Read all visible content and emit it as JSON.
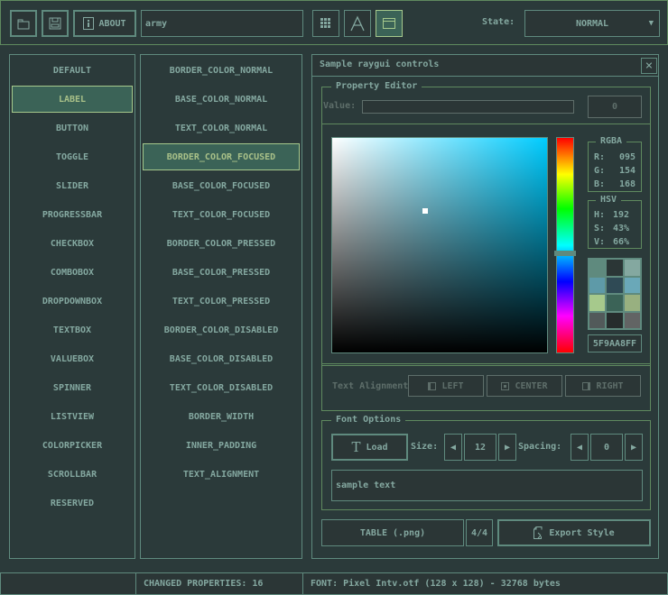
{
  "toolbar": {
    "about_label": "ABOUT",
    "search_value": "army",
    "state_label": "State:",
    "state_value": "NORMAL",
    "icons": [
      "folder-open-icon",
      "save-icon",
      "info-icon",
      "grid-icon",
      "font-icon",
      "window-icon"
    ]
  },
  "controls": [
    "DEFAULT",
    "LABEL",
    "BUTTON",
    "TOGGLE",
    "SLIDER",
    "PROGRESSBAR",
    "CHECKBOX",
    "COMBOBOX",
    "DROPDOWNBOX",
    "TEXTBOX",
    "VALUEBOX",
    "SPINNER",
    "LISTVIEW",
    "COLORPICKER",
    "SCROLLBAR",
    "RESERVED"
  ],
  "selected_control": "LABEL",
  "properties": [
    "BORDER_COLOR_NORMAL",
    "BASE_COLOR_NORMAL",
    "TEXT_COLOR_NORMAL",
    "BORDER_COLOR_FOCUSED",
    "BASE_COLOR_FOCUSED",
    "TEXT_COLOR_FOCUSED",
    "BORDER_COLOR_PRESSED",
    "BASE_COLOR_PRESSED",
    "TEXT_COLOR_PRESSED",
    "BORDER_COLOR_DISABLED",
    "BASE_COLOR_DISABLED",
    "TEXT_COLOR_DISABLED",
    "BORDER_WIDTH",
    "INNER_PADDING",
    "TEXT_ALIGNMENT"
  ],
  "selected_property": "BORDER_COLOR_FOCUSED",
  "window": {
    "title": "Sample raygui controls",
    "close": "×",
    "property_editor": {
      "title": "Property Editor",
      "value_label": "Value:",
      "value": "",
      "value_button": "0",
      "rgba": {
        "title": "RGBA",
        "r_label": "R:",
        "r": "095",
        "g_label": "G:",
        "g": "154",
        "b_label": "B:",
        "b": "168"
      },
      "hsv": {
        "title": "HSV",
        "h_label": "H:",
        "h": "192",
        "s_label": "S:",
        "s": "43%",
        "v_label": "V:",
        "v": "66%"
      },
      "hex": "5F9AA8FF",
      "palette": [
        "#5f8a7e",
        "#2b3636",
        "#84a8a0",
        "#5e9aa8",
        "#2f4a55",
        "#6aa8b8",
        "#a6c98c",
        "#3b6357",
        "#98b080",
        "#525a5a",
        "#262c2c",
        "#626464"
      ],
      "text_align_label": "Text Alignment",
      "align_left": "LEFT",
      "align_center": "CENTER",
      "align_right": "RIGHT"
    },
    "font_options": {
      "title": "Font Options",
      "load_label": "Load",
      "size_label": "Size:",
      "size": "12",
      "spacing_label": "Spacing:",
      "spacing": "0",
      "sample_text": "sample text"
    },
    "table_button": "TABLE (.png)",
    "page": "4/4",
    "export_label": "Export Style"
  },
  "status": {
    "left": "",
    "changed": "CHANGED PROPERTIES: 16",
    "font": "FONT: Pixel Intv.otf (128 x 128) - 32768 bytes"
  },
  "colors": {
    "bg": "#2b3a3a",
    "border": "#5f8a7e",
    "text": "#84a8a0",
    "selected_bg": "#3b6357",
    "selected_border": "#a6c98c",
    "current": "#5f9aa8"
  }
}
